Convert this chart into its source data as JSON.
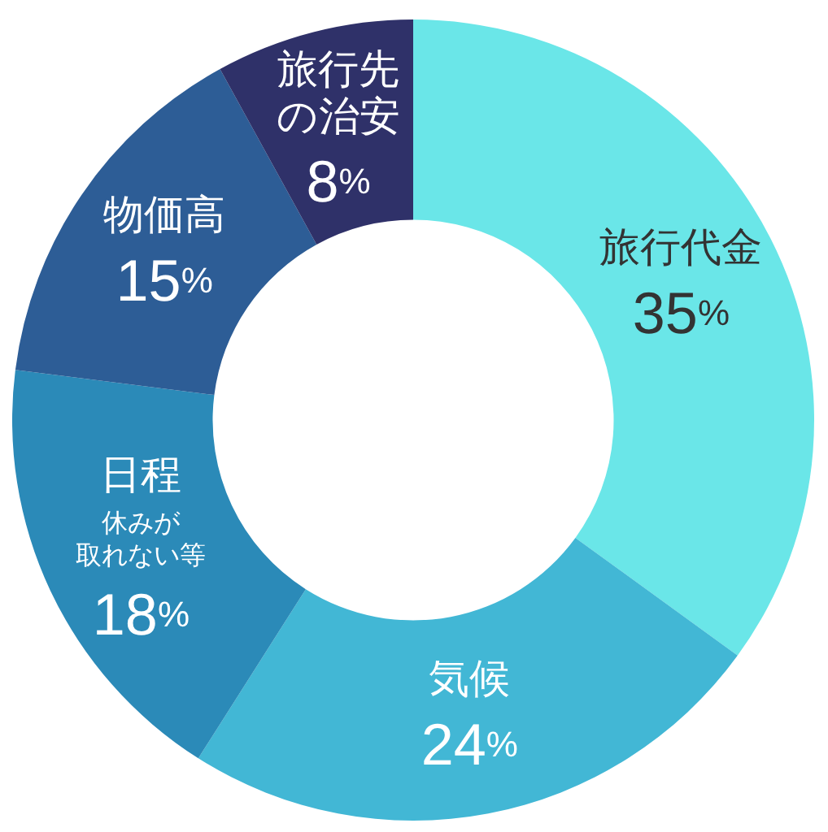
{
  "chart_data": {
    "type": "donut",
    "categories": [
      "旅行代金",
      "気候",
      "日程",
      "物価高",
      "旅行先の治安"
    ],
    "values": [
      35,
      24,
      18,
      15,
      8
    ],
    "colors": [
      "#6ae6e8",
      "#42b7d5",
      "#2b8ab8",
      "#2d5d96",
      "#2f3169"
    ],
    "value_labels": [
      "35%",
      "24%",
      "18%",
      "15%",
      "8%"
    ],
    "annotations": [
      {
        "text": "休みが取れない等",
        "x": "日程"
      }
    ]
  }
}
